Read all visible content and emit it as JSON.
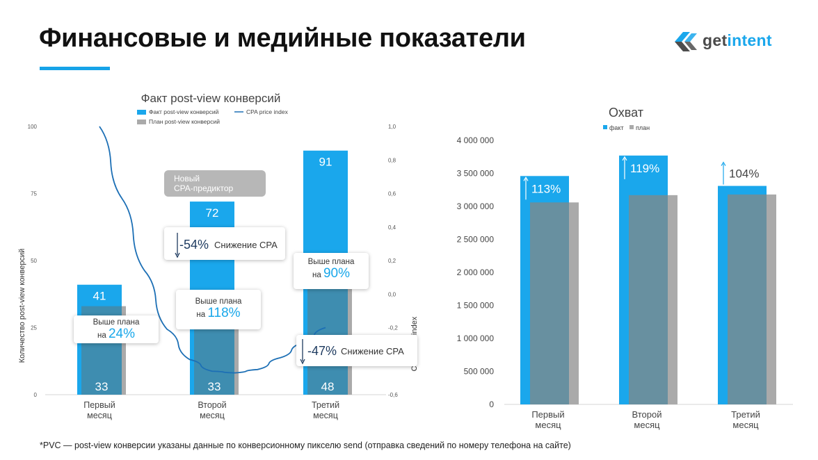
{
  "page": {
    "title": "Финансовые и медийные показатели",
    "footnote": "*PVC — post-view конверсии указаны данные по конверсионному пикселю send (отправка сведений по номеру телефона на сайте)"
  },
  "logo": {
    "part1": "get",
    "part2": "intent"
  },
  "colors": {
    "fact": "#1aa7ec",
    "plan": "#aaaaaa",
    "overlap": "#3e8db0",
    "overlap2": "#6890a0",
    "line": "#1c6fb5",
    "accent": "#18a7ea"
  },
  "chart_data": [
    {
      "type": "bar",
      "title": "Факт post-view конверсий",
      "legend": [
        {
          "name": "Факт post-view конверсий",
          "marker": "bar"
        },
        {
          "name": "CPA price index",
          "marker": "line"
        },
        {
          "name": "План post-view конверсий",
          "marker": "bar"
        }
      ],
      "categories": [
        [
          "Первый",
          "месяц"
        ],
        [
          "Второй",
          "месяц"
        ],
        [
          "Третий",
          "месяц"
        ]
      ],
      "ylabel": "Количество post-view конверсий",
      "y2label": "CPA Price index",
      "ylim": [
        0,
        100
      ],
      "yticks": [
        "0",
        "25",
        "50",
        "75",
        "100"
      ],
      "y2lim": [
        -0.6,
        1.0
      ],
      "y2ticks": [
        "-0,6",
        "-0,4",
        "-0,2",
        "0,0",
        "0,2",
        "0,4",
        "0,6",
        "0,8",
        "1,0"
      ],
      "series": [
        {
          "name": "Факт post-view конверсий",
          "values": [
            41,
            72,
            91
          ],
          "labels": [
            "41",
            "72",
            "91"
          ]
        },
        {
          "name": "План post-view конверсий",
          "values": [
            33,
            33,
            48
          ],
          "labels": [
            "33",
            "33",
            "48"
          ]
        },
        {
          "name": "CPA price index",
          "type": "line",
          "x": [
            0.0,
            0.2,
            0.4,
            0.6,
            0.8,
            1.0,
            1.2,
            1.4,
            1.6,
            1.8,
            2.0
          ],
          "values": [
            1.0,
            0.57,
            0.14,
            -0.21,
            -0.39,
            -0.46,
            -0.47,
            -0.45,
            -0.38,
            -0.29,
            -0.2
          ]
        }
      ],
      "annotations": {
        "predictor": [
          "Новый",
          "CPA-предиктор"
        ],
        "m1_above": {
          "text": "Выше плана",
          "prefix": "на",
          "pct": "24%"
        },
        "m2_above": {
          "text": "Выше плана",
          "prefix": "на",
          "pct": "118%"
        },
        "m3_above": {
          "text": "Выше плана",
          "prefix": "на",
          "pct": "90%"
        },
        "cpa_drop_1": {
          "pct": "-54%",
          "text": "Снижение CPA"
        },
        "cpa_drop_2": {
          "pct": "-47%",
          "text": "Снижение CPA"
        }
      }
    },
    {
      "type": "bar",
      "title": "Охват",
      "legend": [
        "факт",
        "план"
      ],
      "categories": [
        [
          "Первый",
          "месяц"
        ],
        [
          "Второй",
          "месяц"
        ],
        [
          "Третий",
          "месяц"
        ]
      ],
      "ylim": [
        0,
        4000000
      ],
      "yticks": [
        "0",
        "500 000",
        "1 000 000",
        "1 500 000",
        "2 000 000",
        "2 500 000",
        "3 000 000",
        "3 500 000",
        "4 000 000"
      ],
      "series": [
        {
          "name": "факт",
          "values": [
            3460000,
            3770000,
            3310000
          ]
        },
        {
          "name": "план",
          "values": [
            3060000,
            3170000,
            3180000
          ]
        }
      ],
      "growth_labels": [
        "113%",
        "119%",
        "104%"
      ]
    }
  ]
}
